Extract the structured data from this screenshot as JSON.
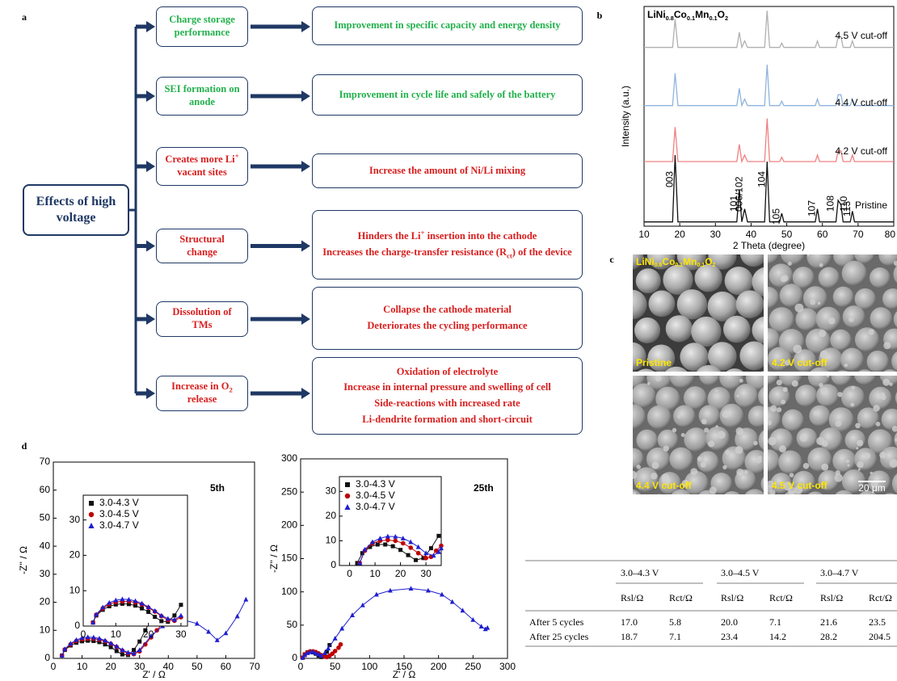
{
  "panel_labels": [
    "a",
    "b",
    "c",
    "d"
  ],
  "flowchart": {
    "root": "Effects of high voltage",
    "rows": [
      {
        "color": "#22b14c",
        "cause": [
          {
            "text": "Charge storage performance"
          }
        ],
        "effects": [
          [
            {
              "text": "Improvement in specific capacity and energy density"
            }
          ]
        ]
      },
      {
        "color": "#22b14c",
        "cause": [
          {
            "text": "SEI formation on anode"
          }
        ],
        "effects": [
          [
            {
              "text": "Improvement in cycle life and safely of the battery"
            }
          ]
        ]
      },
      {
        "color": "#d81e1e",
        "cause": [
          {
            "text": "Creates more Li"
          },
          {
            "text": "+",
            "script": "sup"
          },
          {
            "text": " vacant sites"
          }
        ],
        "effects": [
          [
            {
              "text": "Increase the amount of Ni/Li mixing"
            }
          ]
        ]
      },
      {
        "color": "#d81e1e",
        "cause": [
          {
            "text": "Structural change"
          }
        ],
        "effects": [
          [
            {
              "text": "Hinders the Li"
            },
            {
              "text": "+",
              "script": "sup"
            },
            {
              "text": " insertion into the cathode"
            }
          ],
          [
            {
              "text": "Increases the charge-transfer resistance (R"
            },
            {
              "text": "ct",
              "script": "sub"
            },
            {
              "text": ") of the device"
            }
          ]
        ]
      },
      {
        "color": "#d81e1e",
        "cause": [
          {
            "text": "Dissolution of TMs"
          }
        ],
        "effects": [
          [
            {
              "text": "Collapse the cathode material"
            }
          ],
          [
            {
              "text": "Deteriorates the  cycling performance"
            }
          ]
        ]
      },
      {
        "color": "#d81e1e",
        "cause": [
          {
            "text": "Increase in O"
          },
          {
            "text": "2",
            "script": "sub"
          },
          {
            "text": " release"
          }
        ],
        "effects": [
          [
            {
              "text": "Oxidation of electrolyte"
            }
          ],
          [
            {
              "text": "Increase in internal pressure and swelling of cell"
            }
          ],
          [
            {
              "text": "Side-reactions with increased rate"
            }
          ],
          [
            {
              "text": "Li-dendrite formation and short-circuit"
            }
          ]
        ]
      }
    ]
  },
  "chart_data": [
    {
      "type": "line",
      "title": [
        {
          "text": "LiNi"
        },
        {
          "text": "0.8",
          "script": "sub"
        },
        {
          "text": "Co"
        },
        {
          "text": "0.1",
          "script": "sub"
        },
        {
          "text": "Mn"
        },
        {
          "text": "0.1",
          "script": "sub"
        },
        {
          "text": "O"
        },
        {
          "text": "2",
          "script": "sub"
        }
      ],
      "xlabel": "2 Theta (degree)",
      "ylabel": "Intensity (a.u.)",
      "x": [
        10,
        15,
        18,
        18.7,
        19.5,
        25,
        30,
        36,
        36.7,
        37.4,
        38.2,
        39,
        43.8,
        44.5,
        45.2,
        48,
        48.6,
        49.2,
        55,
        58,
        58.6,
        59.2,
        63.8,
        64.4,
        65.2,
        65.8,
        67.8,
        68.4,
        69,
        75,
        80
      ],
      "series": [
        {
          "name": "4.5 V cut-off",
          "color": "#b0b0b0",
          "values": [
            83,
            83,
            83,
            96,
            83,
            83,
            83,
            83,
            90,
            83,
            86,
            83,
            83,
            100,
            83,
            83,
            85,
            83,
            83,
            83,
            86,
            83,
            83,
            88,
            88,
            83,
            83,
            86,
            83,
            83,
            83
          ]
        },
        {
          "name": "4.4 V cut-off",
          "color": "#8fb4dc",
          "values": [
            56,
            56,
            56,
            71,
            56,
            56,
            56,
            56,
            64,
            56,
            59,
            56,
            56,
            75,
            56,
            56,
            58,
            56,
            56,
            56,
            59,
            56,
            56,
            61,
            61,
            56,
            56,
            59,
            56,
            56,
            56
          ]
        },
        {
          "name": "4.2 V cut-off",
          "color": "#f08080",
          "values": [
            30,
            30,
            30,
            46,
            30,
            30,
            30,
            30,
            38,
            30,
            33,
            30,
            30,
            50,
            30,
            30,
            32,
            30,
            30,
            30,
            33,
            30,
            30,
            35,
            35,
            30,
            30,
            33,
            30,
            30,
            30
          ]
        },
        {
          "name": "Pristine",
          "color": "#111111",
          "values": [
            2,
            2,
            2,
            33,
            2,
            2,
            2,
            2,
            17,
            2,
            8,
            2,
            2,
            30,
            2,
            2,
            6,
            2,
            2,
            2,
            8,
            2,
            2,
            12,
            10,
            2,
            2,
            7,
            2,
            2,
            2
          ]
        }
      ],
      "peaks": {
        "x": [
          18.7,
          36.7,
          38.2,
          44.5,
          48.6,
          58.6,
          64.4,
          65.2,
          68.4
        ],
        "labels": [
          "003",
          "101",
          "006/102",
          "104",
          "105",
          "107",
          "108",
          "110",
          "113"
        ]
      },
      "xlim": [
        10,
        80
      ],
      "ylim": [
        0,
        102
      ],
      "xticks": [
        10,
        20,
        30,
        40,
        50,
        60,
        70,
        80
      ]
    },
    {
      "type": "line",
      "annotation": "5th",
      "xlabel": "Z' / Ω",
      "ylabel": "-Z'' / Ω",
      "xlim": [
        0,
        70
      ],
      "ylim": [
        0,
        70
      ],
      "xticks": [
        0,
        10,
        20,
        30,
        40,
        50,
        60,
        70
      ],
      "yticks": [
        0,
        10,
        20,
        30,
        40,
        50,
        60,
        70
      ],
      "series": [
        {
          "color": "#111111",
          "marker": "square",
          "x": [
            3,
            4,
            6,
            8,
            10,
            12,
            14,
            16,
            18,
            20,
            22,
            24,
            26,
            28,
            30,
            32,
            34,
            36
          ],
          "values": [
            1,
            3,
            4.6,
            5.6,
            6.1,
            6.3,
            6.2,
            5.8,
            5,
            4,
            2.6,
            1.4,
            1.2,
            3,
            6,
            10,
            14,
            18
          ]
        },
        {
          "color": "#c00000",
          "marker": "circle",
          "x": [
            3,
            4,
            6,
            8,
            10,
            12,
            14,
            16,
            18,
            20,
            22,
            24,
            26,
            28,
            30,
            32,
            34,
            36,
            38,
            40,
            42
          ],
          "values": [
            1,
            3.2,
            5,
            6.2,
            6.8,
            7,
            7,
            6.7,
            6.1,
            5.2,
            4.1,
            2.8,
            1.7,
            1.5,
            2.5,
            5,
            7.5,
            10,
            12.5,
            15,
            18
          ]
        },
        {
          "color": "#1f1fd0",
          "marker": "triangle",
          "x": [
            3,
            4,
            6,
            8,
            10,
            12,
            14,
            16,
            18,
            20,
            22,
            24,
            26,
            28,
            30,
            34,
            38,
            42,
            46,
            50,
            54,
            57,
            60,
            64,
            67
          ],
          "values": [
            1,
            3.3,
            5.3,
            6.6,
            7.3,
            7.6,
            7.5,
            7.1,
            6.4,
            5.4,
            4.3,
            3,
            2.1,
            1.8,
            3,
            8,
            11.5,
            13.3,
            13.5,
            12.4,
            9.5,
            6.5,
            9,
            15,
            21
          ]
        }
      ]
    },
    {
      "type": "line",
      "legend": "upper-left",
      "xlim": [
        0,
        32
      ],
      "ylim": [
        0,
        37
      ],
      "xticks": [
        0,
        10,
        20,
        30
      ],
      "yticks": [
        0,
        10,
        20,
        30
      ],
      "series": [
        {
          "name": "3.0-4.3 V",
          "color": "#111111",
          "marker": "square",
          "x": [
            3,
            4,
            6,
            8,
            10,
            12,
            14,
            16,
            18,
            20,
            22,
            24,
            26,
            28,
            30
          ],
          "values": [
            1,
            3,
            4.6,
            5.6,
            6.1,
            6.3,
            6.2,
            5.8,
            5,
            4,
            2.6,
            1.4,
            1.2,
            3,
            6
          ]
        },
        {
          "name": "3.0-4.5 V",
          "color": "#c00000",
          "marker": "circle",
          "x": [
            3,
            4,
            6,
            8,
            10,
            12,
            14,
            16,
            18,
            20,
            22,
            24,
            26,
            28,
            30
          ],
          "values": [
            1,
            3.2,
            5,
            6.2,
            6.8,
            7,
            7,
            6.7,
            6.1,
            5.2,
            4.1,
            2.8,
            1.7,
            1.5,
            2.5
          ]
        },
        {
          "name": "3.0-4.7 V",
          "color": "#1f1fd0",
          "marker": "triangle",
          "x": [
            3,
            4,
            6,
            8,
            10,
            12,
            14,
            16,
            18,
            20,
            22,
            24,
            26,
            28,
            30
          ],
          "values": [
            1,
            3.3,
            5.3,
            6.6,
            7.3,
            7.6,
            7.5,
            7.1,
            6.4,
            5.4,
            4.3,
            3,
            2.1,
            1.8,
            3
          ]
        }
      ]
    },
    {
      "type": "line",
      "annotation": "25th",
      "xlabel": "Z' / Ω",
      "ylabel": "-Z'' / Ω",
      "xlim": [
        0,
        300
      ],
      "ylim": [
        0,
        300
      ],
      "xticks": [
        0,
        50,
        100,
        150,
        200,
        250,
        300
      ],
      "yticks": [
        0,
        50,
        100,
        150,
        200,
        250,
        300
      ],
      "series": [
        {
          "color": "#111111",
          "marker": "square",
          "x": [
            3,
            6,
            10,
            14,
            18,
            22,
            26,
            30,
            34,
            38,
            42
          ],
          "values": [
            1,
            6,
            9,
            10,
            9,
            7,
            4,
            2,
            3,
            10,
            20
          ]
        },
        {
          "color": "#c00000",
          "marker": "circle",
          "x": [
            3,
            6,
            10,
            14,
            18,
            22,
            26,
            30,
            34,
            38,
            42,
            46,
            50,
            55,
            58
          ],
          "values": [
            1,
            6,
            9,
            10.5,
            10.5,
            9.5,
            7.5,
            5,
            3,
            2,
            4,
            7,
            11,
            16,
            21
          ]
        },
        {
          "color": "#1f1fd0",
          "marker": "triangle",
          "x": [
            3,
            6,
            10,
            14,
            18,
            22,
            26,
            30,
            35,
            40,
            50,
            60,
            75,
            90,
            110,
            130,
            160,
            185,
            205,
            220,
            235,
            250,
            262,
            268,
            271
          ],
          "values": [
            1,
            5,
            8,
            9.5,
            9.5,
            8,
            6,
            4,
            8,
            15,
            30,
            45,
            65,
            80,
            96,
            102,
            105,
            102,
            96,
            85,
            72,
            58,
            48,
            44,
            46
          ]
        }
      ]
    },
    {
      "type": "line",
      "legend": "upper-left",
      "xlim": [
        -4,
        36
      ],
      "ylim": [
        0,
        36
      ],
      "xticks": [
        0,
        10,
        20,
        30
      ],
      "yticks": [
        0,
        10,
        20,
        30
      ],
      "series": [
        {
          "name": "3.0-4.3 V",
          "color": "#111111",
          "marker": "square",
          "x": [
            3,
            5,
            8,
            11,
            14,
            17,
            20,
            23,
            26,
            29,
            32,
            35
          ],
          "values": [
            1,
            5,
            7.5,
            8.5,
            8.5,
            7.8,
            6.3,
            4.2,
            2.2,
            3,
            7,
            12
          ]
        },
        {
          "name": "3.0-4.5 V",
          "color": "#c00000",
          "marker": "circle",
          "x": [
            4,
            6,
            9,
            12,
            15,
            18,
            21,
            24,
            27,
            30,
            32,
            34,
            36
          ],
          "values": [
            1,
            6,
            9,
            10,
            10.3,
            10,
            9,
            7.2,
            5,
            3,
            3.5,
            6,
            8
          ]
        },
        {
          "name": "3.0-4.7 V",
          "color": "#1f1fd0",
          "marker": "triangle",
          "x": [
            4,
            6,
            9,
            12,
            15,
            18,
            21,
            24,
            27,
            30,
            33,
            35,
            36
          ],
          "values": [
            1,
            6.5,
            9.5,
            11,
            11.8,
            11.7,
            11,
            9.5,
            7.5,
            5,
            4,
            5.5,
            7
          ]
        }
      ]
    }
  ],
  "micrographs": {
    "formula": [
      {
        "text": "LiNi"
      },
      {
        "text": "0.8",
        "script": "sub"
      },
      {
        "text": "Co"
      },
      {
        "text": "0.1",
        "script": "sub"
      },
      {
        "text": "Mn"
      },
      {
        "text": "0.1",
        "script": "sub"
      },
      {
        "text": "O"
      },
      {
        "text": "2",
        "script": "sub"
      }
    ],
    "labels": [
      "Pristine",
      "4.2 V cut-off",
      "4.4 V cut-off",
      "4.5 V cut-off"
    ],
    "scale_bar": "20 μm"
  },
  "table": {
    "groups": [
      "3.0–4.3 V",
      "3.0–4.5 V",
      "3.0–4.7 V"
    ],
    "subheaders": [
      "Rsl/Ω",
      "Rct/Ω",
      "Rsl/Ω",
      "Rct/Ω",
      "Rsl/Ω",
      "Rct/Ω"
    ],
    "rows": [
      [
        "After 5 cycles",
        "17.0",
        "5.8",
        "20.0",
        "7.1",
        "21.6",
        "23.5"
      ],
      [
        "After 25 cycles",
        "18.7",
        "7.1",
        "23.4",
        "14.2",
        "28.2",
        "204.5"
      ]
    ]
  }
}
